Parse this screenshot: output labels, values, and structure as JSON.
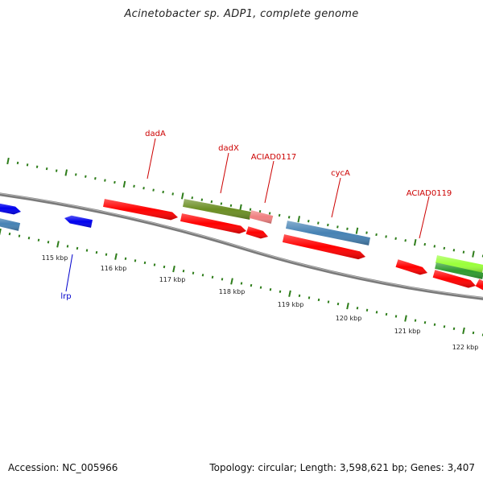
{
  "title": "Acinetobacter sp. ADP1, complete genome",
  "footer": {
    "accession": "Accession: NC_005966",
    "summary": "Topology: circular; Length: 3,598,621 bp; Genes: 3,407"
  },
  "colors": {
    "backbone": "#808080",
    "tick": "#2e7d1a",
    "label_red": "#cc0000",
    "label_blue": "#0000cc",
    "gene_red": "#ff0000",
    "gene_blue": "#0000ee",
    "gene_steel": "#4682b4",
    "gene_olive": "#6b8e23",
    "gene_pink": "#f08080",
    "gene_lime": "#9aff3a",
    "gene_green": "#2e9a2e"
  },
  "kbp_labels": [
    "115 kbp",
    "116 kbp",
    "117 kbp",
    "118 kbp",
    "119 kbp",
    "120 kbp",
    "121 kbp",
    "122 kbp"
  ],
  "gene_labels": [
    "dadA",
    "dadX",
    "ACIAD0117",
    "cycA",
    "ACIAD0119",
    "lrp"
  ]
}
